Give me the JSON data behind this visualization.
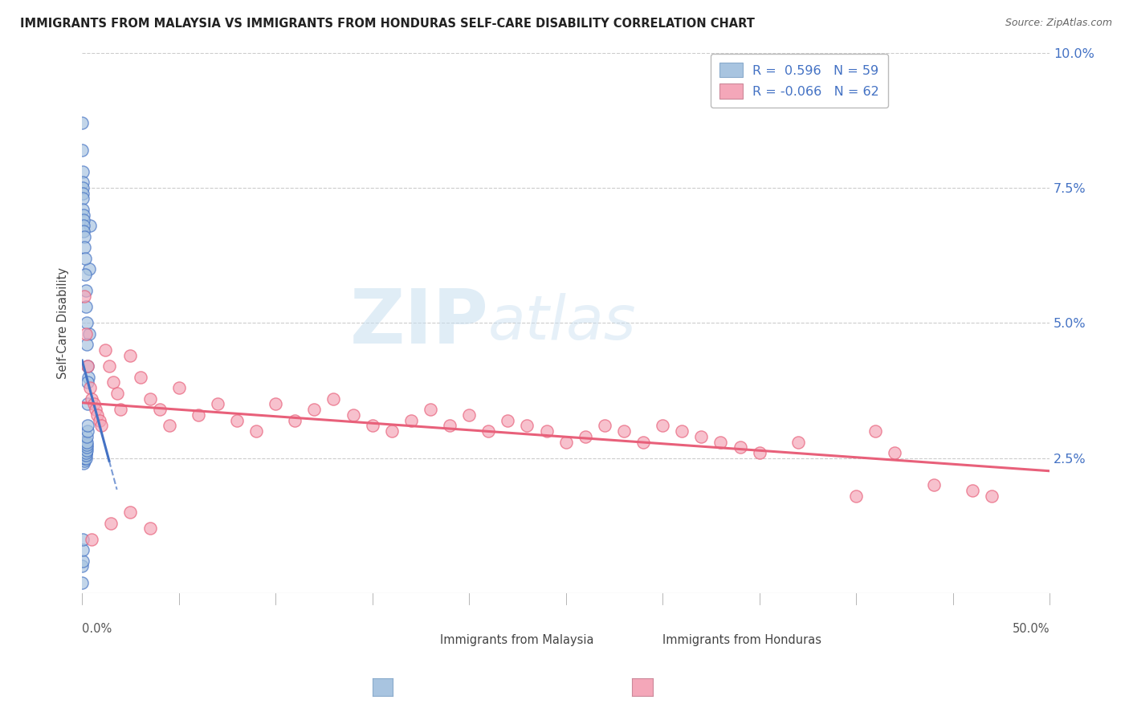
{
  "title": "IMMIGRANTS FROM MALAYSIA VS IMMIGRANTS FROM HONDURAS SELF-CARE DISABILITY CORRELATION CHART",
  "source": "Source: ZipAtlas.com",
  "ylabel": "Self-Care Disability",
  "xmin": 0.0,
  "xmax": 0.5,
  "ymin": 0.0,
  "ymax": 0.1,
  "yticks": [
    0.0,
    0.025,
    0.05,
    0.075,
    0.1
  ],
  "ytick_labels": [
    "",
    "2.5%",
    "5.0%",
    "7.5%",
    "10.0%"
  ],
  "malaysia_R": 0.596,
  "malaysia_N": 59,
  "honduras_R": -0.066,
  "honduras_N": 62,
  "malaysia_color": "#a8c4e0",
  "malaysia_line_color": "#4472c4",
  "honduras_color": "#f4a7b9",
  "honduras_line_color": "#e8607a",
  "malaysia_x": [
    0.0002,
    0.0003,
    0.0004,
    0.0005,
    0.0006,
    0.0007,
    0.0008,
    0.0009,
    0.001,
    0.0011,
    0.0012,
    0.0013,
    0.0014,
    0.0015,
    0.0016,
    0.0017,
    0.0018,
    0.0019,
    0.002,
    0.0021,
    0.0022,
    0.0023,
    0.0024,
    0.0025,
    0.0026,
    0.0027,
    0.0028,
    0.003,
    0.0032,
    0.0035,
    0.0038,
    0.004,
    0.0001,
    0.0001,
    0.0002,
    0.0002,
    0.0003,
    0.0003,
    0.0004,
    0.0005,
    0.0006,
    0.0007,
    0.0008,
    0.0009,
    0.001,
    0.0012,
    0.0014,
    0.0016,
    0.0018,
    0.002,
    0.0022,
    0.0025,
    0.0028,
    0.003,
    0.0001,
    0.0001,
    0.0002,
    0.0003,
    0.0004
  ],
  "malaysia_y": [
    0.0275,
    0.028,
    0.027,
    0.026,
    0.0255,
    0.0265,
    0.025,
    0.024,
    0.0245,
    0.025,
    0.0255,
    0.026,
    0.0265,
    0.027,
    0.0275,
    0.028,
    0.026,
    0.025,
    0.0255,
    0.026,
    0.0265,
    0.027,
    0.0275,
    0.028,
    0.029,
    0.03,
    0.031,
    0.035,
    0.04,
    0.048,
    0.06,
    0.068,
    0.087,
    0.082,
    0.078,
    0.076,
    0.075,
    0.074,
    0.073,
    0.071,
    0.07,
    0.069,
    0.068,
    0.067,
    0.066,
    0.064,
    0.062,
    0.059,
    0.056,
    0.053,
    0.05,
    0.046,
    0.042,
    0.039,
    0.005,
    0.002,
    0.006,
    0.008,
    0.01
  ],
  "honduras_x": [
    0.001,
    0.002,
    0.003,
    0.004,
    0.005,
    0.006,
    0.007,
    0.008,
    0.009,
    0.01,
    0.012,
    0.014,
    0.016,
    0.018,
    0.02,
    0.025,
    0.03,
    0.035,
    0.04,
    0.045,
    0.05,
    0.06,
    0.07,
    0.08,
    0.09,
    0.1,
    0.11,
    0.12,
    0.13,
    0.14,
    0.15,
    0.16,
    0.17,
    0.18,
    0.19,
    0.2,
    0.21,
    0.22,
    0.23,
    0.24,
    0.25,
    0.26,
    0.27,
    0.28,
    0.29,
    0.3,
    0.31,
    0.32,
    0.33,
    0.34,
    0.35,
    0.37,
    0.4,
    0.41,
    0.42,
    0.44,
    0.46,
    0.47,
    0.005,
    0.015,
    0.025,
    0.035
  ],
  "honduras_y": [
    0.055,
    0.048,
    0.042,
    0.038,
    0.036,
    0.035,
    0.034,
    0.033,
    0.032,
    0.031,
    0.045,
    0.042,
    0.039,
    0.037,
    0.034,
    0.044,
    0.04,
    0.036,
    0.034,
    0.031,
    0.038,
    0.033,
    0.035,
    0.032,
    0.03,
    0.035,
    0.032,
    0.034,
    0.036,
    0.033,
    0.031,
    0.03,
    0.032,
    0.034,
    0.031,
    0.033,
    0.03,
    0.032,
    0.031,
    0.03,
    0.028,
    0.029,
    0.031,
    0.03,
    0.028,
    0.031,
    0.03,
    0.029,
    0.028,
    0.027,
    0.026,
    0.028,
    0.018,
    0.03,
    0.026,
    0.02,
    0.019,
    0.018,
    0.01,
    0.013,
    0.015,
    0.012
  ],
  "watermark_zip": "ZIP",
  "watermark_atlas": "atlas",
  "background_color": "#ffffff",
  "grid_color": "#cccccc"
}
